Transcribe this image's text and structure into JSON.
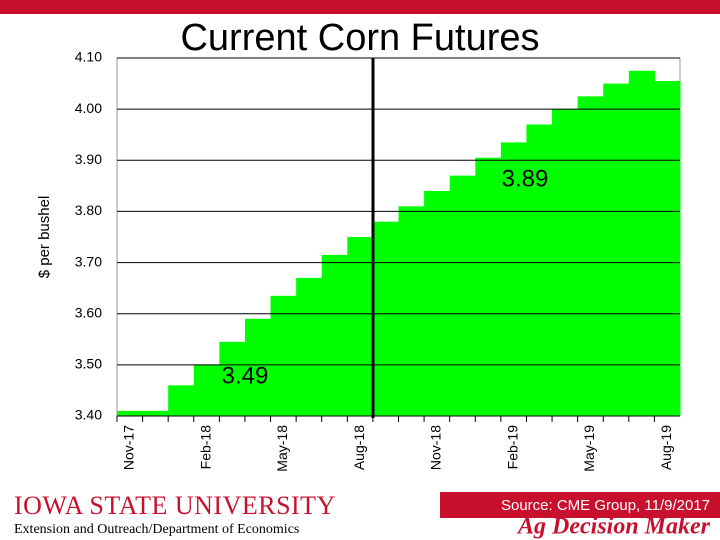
{
  "chart_data": {
    "type": "step",
    "title": "Current Corn Futures",
    "y_label": "$ per bushel",
    "categories": [
      "Nov-17",
      null,
      null,
      "Feb-18",
      null,
      null,
      "May-18",
      null,
      null,
      "Aug-18",
      null,
      null,
      "Nov-18",
      null,
      null,
      "Feb-19",
      null,
      null,
      "May-19",
      null,
      null,
      "Aug-19"
    ],
    "values": [
      3.41,
      3.41,
      3.46,
      3.5,
      3.545,
      3.59,
      3.635,
      3.67,
      3.715,
      3.75,
      3.78,
      3.81,
      3.84,
      3.87,
      3.905,
      3.935,
      3.97,
      4.0,
      4.025,
      4.05,
      4.075,
      4.055
    ],
    "color": "#00ff00",
    "ylim": [
      3.4,
      4.1
    ],
    "yticks": [
      {
        "value": 3.4,
        "label": "3.40"
      },
      {
        "value": 3.5,
        "label": "3.50"
      },
      {
        "value": 3.6,
        "label": "3.60"
      },
      {
        "value": 3.7,
        "label": "3.70"
      },
      {
        "value": 3.8,
        "label": "3.80"
      },
      {
        "value": 3.9,
        "label": "3.90"
      },
      {
        "value": 4.0,
        "label": "4.00"
      },
      {
        "value": 4.1,
        "label": "4.10"
      }
    ],
    "grid": true,
    "annotations": [
      "3.49",
      "3.89"
    ]
  },
  "footer": {
    "university": "Iowa State University",
    "department": "Extension and Outreach/Department of Economics",
    "source": "Source: CME Group, 11/9/2017",
    "brand": "Ag Decision Maker"
  }
}
